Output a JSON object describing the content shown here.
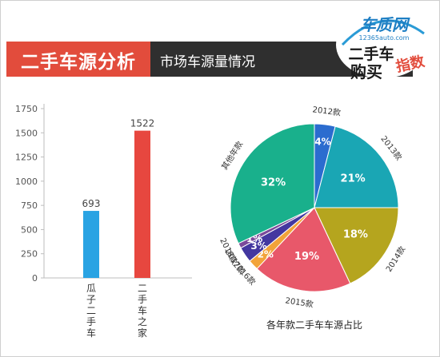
{
  "header": {
    "title": "二手车源分析",
    "subtitle": "市场车源量情况",
    "brand_logo": "车质网",
    "brand_url": "12365auto.com",
    "brand_slogan_1": "二手车",
    "brand_slogan_2": "购买",
    "brand_slogan_3": "指数"
  },
  "chart_data": [
    {
      "type": "bar",
      "categories": [
        "瓜子二手车",
        "二手车之家"
      ],
      "values": [
        693,
        1522
      ],
      "colors": [
        "#29a3e3",
        "#e7473f"
      ],
      "title": "",
      "xlabel": "",
      "ylabel": "",
      "ylim": [
        0,
        1750
      ],
      "yticks": [
        "0",
        "250",
        "500",
        "750",
        "1000",
        "1250",
        "1500",
        "1750"
      ],
      "grid": false
    },
    {
      "type": "pie",
      "title": "各年款二手车车源占比",
      "slices": [
        {
          "label": "2012款",
          "value": 4,
          "value_label": "4%",
          "color": "#2b6ccf"
        },
        {
          "label": "2013款",
          "value": 21,
          "value_label": "21%",
          "color": "#1aa6b4"
        },
        {
          "label": "2014款",
          "value": 18,
          "value_label": "18%",
          "color": "#b5a51e"
        },
        {
          "label": "2015款",
          "value": 19,
          "value_label": "19%",
          "color": "#e8586a"
        },
        {
          "label": "2016款",
          "value": 2,
          "value_label": "2%",
          "color": "#f2a33a"
        },
        {
          "label": "2017款",
          "value": 3,
          "value_label": "3%",
          "color": "#4337a0"
        },
        {
          "label": "2018款",
          "value": 1,
          "value_label": "1%",
          "color": "#7b4a9b"
        },
        {
          "label": "其他年款",
          "value": 32,
          "value_label": "32%",
          "color": "#19b08c"
        }
      ]
    }
  ]
}
